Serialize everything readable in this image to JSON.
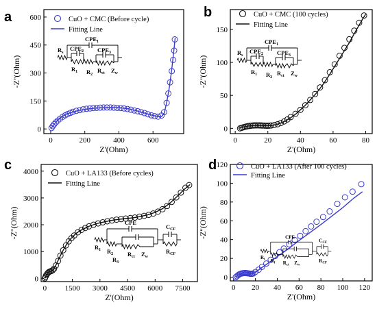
{
  "chart_data": [
    {
      "type": "scatter",
      "panel": "a",
      "xlabel": "Z'(Ohm)",
      "ylabel": "-Z''(Ohm)",
      "xlim": [
        -40,
        780
      ],
      "ylim": [
        -25,
        640
      ],
      "xticks": [
        0,
        200,
        400,
        600
      ],
      "yticks": [
        0,
        150,
        300,
        450,
        600
      ],
      "color": "#3a3acc",
      "legend_position": "top-left",
      "series": [
        {
          "name": "CuO + CMC (Before cycle)",
          "kind": "markers",
          "x": [
            5,
            12,
            20,
            30,
            42,
            55,
            70,
            85,
            100,
            115,
            130,
            150,
            170,
            190,
            210,
            230,
            250,
            270,
            290,
            310,
            330,
            350,
            370,
            390,
            410,
            430,
            450,
            470,
            490,
            510,
            530,
            550,
            570,
            590,
            610,
            630,
            650,
            665,
            680,
            690,
            700,
            710,
            718,
            724,
            728
          ],
          "y": [
            5,
            15,
            25,
            35,
            45,
            55,
            65,
            73,
            80,
            86,
            92,
            97,
            101,
            105,
            108,
            110,
            112,
            113,
            114,
            115,
            115,
            115,
            114,
            113,
            112,
            110,
            107,
            103,
            99,
            95,
            90,
            85,
            79,
            73,
            68,
            66,
            72,
            90,
            140,
            190,
            250,
            310,
            370,
            420,
            480
          ]
        },
        {
          "name": "Fitting Line",
          "kind": "line",
          "x": [
            0,
            10,
            20,
            40,
            60,
            80,
            100,
            130,
            160,
            200,
            250,
            300,
            350,
            400,
            450,
            500,
            550,
            600,
            630,
            650,
            665,
            680,
            695,
            710,
            722,
            730
          ],
          "y": [
            0,
            12,
            25,
            45,
            62,
            74,
            82,
            91,
            98,
            105,
            111,
            114,
            115,
            114,
            109,
            98,
            85,
            72,
            67,
            67,
            82,
            140,
            220,
            320,
            420,
            490
          ]
        }
      ],
      "circuit": {
        "labels": [
          "R",
          "CPE",
          "CPE",
          "CPE",
          "R",
          "R",
          "R",
          "Z"
        ],
        "subscripts": [
          "s",
          "1",
          "2",
          "3",
          "1",
          "2",
          "ct",
          "w"
        ]
      }
    },
    {
      "type": "scatter",
      "panel": "b",
      "xlabel": "Z'(Ohm)",
      "ylabel": "-Z''(Ohm)",
      "xlim": [
        -3,
        84
      ],
      "ylim": [
        -8,
        180
      ],
      "xticks": [
        0,
        20,
        40,
        60,
        80
      ],
      "yticks": [
        0,
        50,
        100,
        150
      ],
      "color": "#111111",
      "legend_position": "top-left",
      "series": [
        {
          "name": "CuO + CMC (100 cycles)",
          "kind": "markers",
          "x": [
            3,
            4,
            5,
            6,
            7,
            8,
            9,
            10,
            11,
            12,
            13,
            14,
            15,
            16,
            17,
            18,
            19,
            20,
            21,
            22,
            24,
            26,
            28,
            30,
            32,
            34,
            37,
            40,
            43,
            46,
            49,
            52,
            55,
            58,
            61,
            64,
            67,
            70,
            73,
            76,
            79
          ],
          "y": [
            0,
            0.8,
            1.6,
            2.3,
            2.9,
            3.4,
            3.8,
            4.1,
            4.3,
            4.4,
            4.5,
            4.5,
            4.4,
            4.3,
            4.2,
            4.1,
            4.0,
            4.0,
            4.1,
            4.3,
            5.0,
            6.2,
            8.0,
            10.5,
            13.5,
            17,
            22,
            28,
            35,
            43,
            52,
            62,
            73,
            85,
            97,
            110,
            122,
            135,
            148,
            160,
            171
          ]
        },
        {
          "name": "Fitting Line",
          "kind": "line",
          "x": [
            2,
            4,
            6,
            8,
            10,
            12,
            14,
            16,
            18,
            20,
            22,
            25,
            28,
            31,
            34,
            37,
            40,
            43,
            46,
            50,
            54,
            58,
            62,
            66,
            70,
            74,
            78,
            80
          ],
          "y": [
            0,
            1.5,
            2.6,
            3.5,
            4.1,
            4.4,
            4.5,
            4.4,
            4.2,
            4.1,
            4.3,
            5.5,
            8,
            11.5,
            16,
            21.5,
            28,
            35,
            43,
            54,
            67,
            82,
            98,
            114,
            130,
            148,
            165,
            173
          ]
        }
      ],
      "circuit": {
        "labels": [
          "R",
          "CPE",
          "CPE",
          "CPE",
          "R",
          "R",
          "R",
          "Z"
        ],
        "subscripts": [
          "s",
          "1",
          "2",
          "3",
          "1",
          "2",
          "ct",
          "w"
        ]
      }
    },
    {
      "type": "scatter",
      "panel": "c",
      "xlabel": "Z'(Ohm)",
      "ylabel": "-Z''(Ohm)",
      "xlim": [
        -200,
        8300
      ],
      "ylim": [
        -120,
        4250
      ],
      "xticks": [
        0,
        1500,
        3000,
        4500,
        6000,
        7500
      ],
      "yticks": [
        0,
        1000,
        2000,
        3000,
        4000
      ],
      "color": "#111111",
      "legend_position": "top-left",
      "series": [
        {
          "name": "CuO + LA133 (Before cycles)",
          "kind": "markers",
          "x": [
            0,
            40,
            80,
            130,
            180,
            230,
            290,
            350,
            420,
            500,
            600,
            720,
            850,
            1000,
            1150,
            1300,
            1450,
            1600,
            1800,
            2000,
            2200,
            2400,
            2650,
            2900,
            3150,
            3400,
            3650,
            3900,
            4150,
            4400,
            4650,
            4900,
            5150,
            5400,
            5650,
            5900,
            6150,
            6400,
            6650,
            6900,
            7150,
            7400,
            7650,
            7850
          ],
          "y": [
            0,
            60,
            120,
            170,
            210,
            240,
            260,
            275,
            300,
            360,
            480,
            650,
            850,
            1050,
            1230,
            1380,
            1500,
            1600,
            1720,
            1810,
            1880,
            1940,
            2000,
            2050,
            2090,
            2130,
            2160,
            2190,
            2210,
            2230,
            2250,
            2270,
            2300,
            2330,
            2370,
            2420,
            2490,
            2580,
            2700,
            2850,
            3020,
            3200,
            3380,
            3480
          ]
        },
        {
          "name": "Fitting Line",
          "kind": "line",
          "x": [
            0,
            100,
            200,
            300,
            400,
            500,
            650,
            800,
            1000,
            1200,
            1400,
            1700,
            2000,
            2400,
            2800,
            3200,
            3600,
            4000,
            4400,
            4800,
            5200,
            5600,
            6000,
            6400,
            6800,
            7200,
            7600,
            7900
          ],
          "y": [
            0,
            150,
            230,
            265,
            290,
            360,
            560,
            780,
            1050,
            1290,
            1470,
            1680,
            1810,
            1940,
            2040,
            2100,
            2160,
            2200,
            2230,
            2260,
            2310,
            2370,
            2460,
            2600,
            2800,
            3060,
            3330,
            3500
          ]
        }
      ],
      "circuit": {
        "labels": [
          "CPE",
          "C",
          "R",
          "R",
          "R",
          "R",
          "R",
          "Z"
        ],
        "subscripts": [
          "",
          "CF",
          "1",
          "2",
          "3",
          "ct",
          "CF",
          "w"
        ]
      }
    },
    {
      "type": "scatter",
      "panel": "d",
      "xlabel": "Z'(Ohm)",
      "ylabel": "-Z''(Ohm)",
      "xlim": [
        -3,
        127
      ],
      "ylim": [
        -4,
        120
      ],
      "xticks": [
        0,
        20,
        40,
        60,
        80,
        100,
        120
      ],
      "yticks": [
        0,
        20,
        40,
        60,
        80,
        100,
        120
      ],
      "color": "#3a3acc",
      "legend_position": "top-left",
      "series": [
        {
          "name": "CuO + LA133 (After 100 cycles)",
          "kind": "markers",
          "x": [
            2,
            3,
            4,
            5,
            6,
            7,
            8,
            9,
            10,
            11,
            12,
            13,
            14,
            15,
            16,
            17,
            18,
            20,
            23,
            26,
            30,
            34,
            38,
            42,
            46,
            51,
            56,
            61,
            66,
            71,
            76,
            82,
            88,
            95,
            102,
            109,
            117
          ],
          "y": [
            0,
            1,
            2,
            2.8,
            3.4,
            3.8,
            4.1,
            4.3,
            4.4,
            4.4,
            4.3,
            4.1,
            3.9,
            3.7,
            3.6,
            3.6,
            3.9,
            5.5,
            8,
            11,
            14.5,
            18.5,
            22.5,
            26.5,
            30.5,
            35,
            39.5,
            44,
            49,
            54,
            59,
            64,
            70,
            78,
            85,
            91,
            99
          ]
        },
        {
          "name": "Fitting Line",
          "kind": "line",
          "x": [
            2,
            4,
            6,
            8,
            10,
            12,
            14,
            16,
            18,
            20,
            25,
            30,
            40,
            50,
            60,
            70,
            80,
            90,
            100,
            110,
            118
          ],
          "y": [
            0,
            2.2,
            3.4,
            4.1,
            4.4,
            4.3,
            4,
            3.7,
            3.8,
            5.2,
            9.5,
            13.5,
            22,
            30,
            39,
            47.5,
            56,
            65,
            74,
            84,
            91
          ]
        }
      ],
      "circuit": {
        "labels": [
          "CPE",
          "C",
          "R",
          "R",
          "R",
          "R",
          "Z"
        ],
        "subscripts": [
          "",
          "CF",
          "i",
          "f",
          "ct",
          "CF",
          "w"
        ]
      }
    }
  ]
}
